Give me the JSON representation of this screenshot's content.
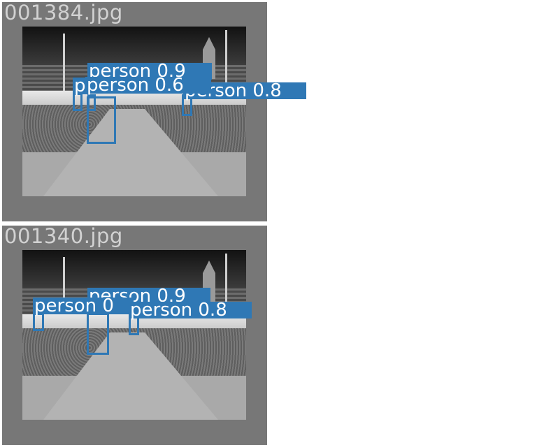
{
  "images": [
    {
      "filename": "001384.jpg",
      "detections": [
        {
          "label": "person 0.9"
        },
        {
          "label": "person 0.6"
        },
        {
          "label": "p"
        },
        {
          "label": "person 0.8"
        }
      ]
    },
    {
      "filename": "001340.jpg",
      "detections": [
        {
          "label": "person 0.9"
        },
        {
          "label": "person 0"
        },
        {
          "label": "person 0.8"
        }
      ]
    }
  ],
  "colors": {
    "box": "#2f78b5",
    "panel_border": "#777777",
    "filename_text": "#d2d2d2"
  }
}
